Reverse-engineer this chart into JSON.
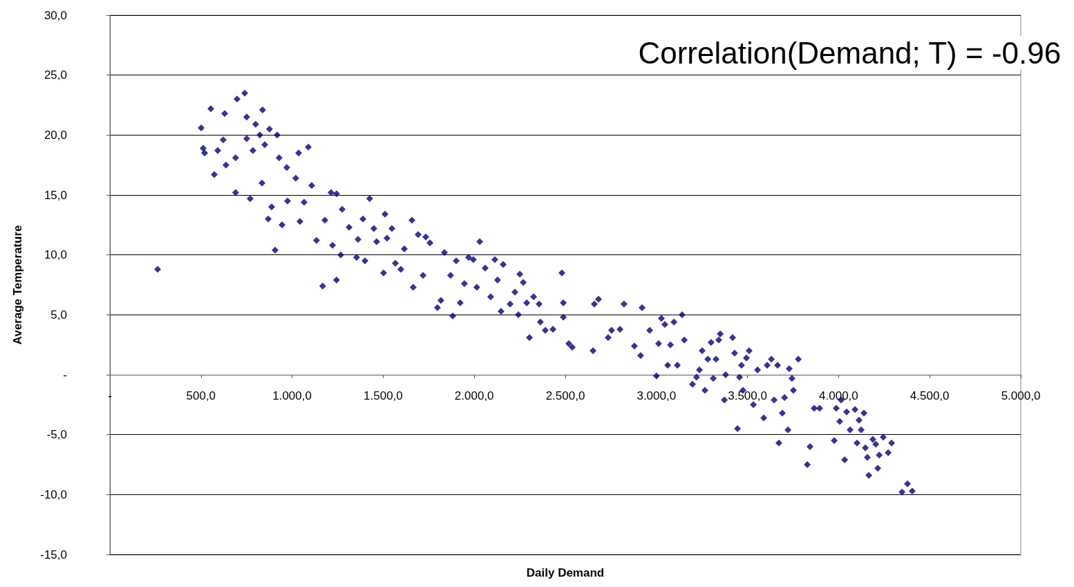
{
  "chart_data": {
    "type": "scatter",
    "xlabel": "Daily Demand",
    "ylabel": "Average Temperature",
    "annotations": [
      "Correlation(Demand; T) = -0.96"
    ],
    "x": [
      262,
      501,
      512,
      554,
      520,
      573,
      592,
      622,
      630,
      637,
      690,
      690,
      698,
      740,
      751,
      751,
      770,
      785,
      800,
      823,
      838,
      835,
      850,
      876,
      869,
      888,
      907,
      918,
      929,
      945,
      971,
      975,
      1020,
      1036,
      1043,
      1066,
      1089,
      1108,
      1134,
      1168,
      1180,
      1214,
      1222,
      1244,
      1244,
      1267,
      1275,
      1313,
      1354,
      1362,
      1389,
      1400,
      1426,
      1449,
      1464,
      1502,
      1510,
      1521,
      1548,
      1567,
      1597,
      1616,
      1658,
      1665,
      1692,
      1719,
      1734,
      1757,
      1798,
      1817,
      1836,
      1870,
      1882,
      1901,
      1923,
      1946,
      1969,
      1995,
      2014,
      2030,
      2060,
      2090,
      2113,
      2128,
      2147,
      2159,
      2197,
      2223,
      2242,
      2250,
      2269,
      2288,
      2303,
      2326,
      2356,
      2363,
      2390,
      2432,
      2481,
      2489,
      2489,
      2519,
      2538,
      2652,
      2659,
      2682,
      2735,
      2754,
      2800,
      2822,
      2879,
      2913,
      2921,
      2963,
      3000,
      3012,
      3027,
      3046,
      3062,
      3077,
      3096,
      3115,
      3141,
      3153,
      3198,
      3220,
      3236,
      3251,
      3266,
      3282,
      3300,
      3312,
      3327,
      3342,
      3350,
      3373,
      3380,
      3418,
      3429,
      3445,
      3456,
      3467,
      3475,
      3494,
      3509,
      3532,
      3555,
      3589,
      3608,
      3631,
      3646,
      3665,
      3672,
      3691,
      3703,
      3722,
      3729,
      3744,
      3752,
      3779,
      3828,
      3843,
      3866,
      3896,
      3976,
      3987,
      4006,
      4014,
      4033,
      4044,
      4063,
      4090,
      4101,
      4112,
      4124,
      4139,
      4147,
      4158,
      4166,
      4188,
      4204,
      4215,
      4223,
      4245,
      4272,
      4291,
      4348,
      4378,
      4404
    ],
    "series": [
      {
        "color": "#000080",
        "values": [
          8.8,
          20.6,
          18.9,
          22.2,
          18.5,
          16.7,
          18.7,
          19.6,
          21.8,
          17.5,
          18.1,
          15.2,
          23.0,
          23.5,
          21.5,
          19.7,
          14.7,
          18.7,
          20.9,
          20.0,
          22.1,
          16.0,
          19.2,
          20.5,
          13.0,
          14.0,
          10.4,
          20.0,
          18.1,
          12.5,
          17.3,
          14.5,
          16.4,
          18.5,
          12.8,
          14.4,
          19.0,
          15.8,
          11.2,
          7.4,
          12.9,
          15.2,
          10.8,
          7.9,
          15.1,
          10.0,
          13.8,
          12.3,
          9.8,
          11.3,
          13.0,
          9.5,
          14.7,
          12.2,
          11.1,
          8.5,
          13.4,
          11.4,
          12.2,
          9.3,
          8.8,
          10.5,
          12.9,
          7.3,
          11.7,
          8.3,
          11.5,
          11.0,
          5.6,
          6.2,
          10.2,
          8.3,
          4.9,
          9.5,
          6.0,
          7.6,
          9.8,
          9.6,
          7.3,
          11.1,
          8.9,
          6.5,
          9.6,
          7.9,
          5.3,
          9.2,
          5.9,
          6.9,
          5.0,
          8.4,
          7.7,
          6.0,
          3.1,
          6.5,
          5.9,
          4.4,
          3.7,
          3.8,
          8.5,
          6.0,
          4.8,
          2.6,
          2.3,
          2.0,
          5.9,
          6.3,
          3.1,
          3.7,
          3.8,
          5.9,
          2.4,
          1.6,
          5.6,
          3.7,
          -0.1,
          2.6,
          4.7,
          4.2,
          0.8,
          2.5,
          4.4,
          0.8,
          5.0,
          2.9,
          -0.8,
          -0.2,
          0.4,
          2.0,
          -1.3,
          1.3,
          2.7,
          -0.3,
          1.3,
          2.9,
          3.4,
          -2.1,
          0.0,
          3.1,
          1.8,
          -4.5,
          -0.2,
          0.8,
          -1.3,
          1.4,
          2.0,
          -2.5,
          0.4,
          -3.6,
          0.8,
          1.3,
          -2.1,
          0.8,
          -5.7,
          -3.2,
          -1.9,
          -4.6,
          0.5,
          -0.3,
          -1.3,
          1.3,
          -7.5,
          -6.0,
          -2.8,
          -2.8,
          -5.5,
          -2.8,
          -3.9,
          -2.1,
          -7.1,
          -3.1,
          -4.6,
          -2.9,
          -5.7,
          -3.8,
          -4.6,
          -3.2,
          -6.1,
          -6.9,
          -8.4,
          -5.4,
          -5.8,
          -7.8,
          -6.7,
          -5.2,
          -6.5,
          -5.7,
          -9.8,
          -9.1,
          -9.7
        ]
      }
    ],
    "xlim": [
      0,
      5000
    ],
    "xticks": [
      {
        "value": 0,
        "label": "-"
      },
      {
        "value": 500,
        "label": "500,0"
      },
      {
        "value": 1000,
        "label": "1.000,0"
      },
      {
        "value": 1500,
        "label": "1.500,0"
      },
      {
        "value": 2000,
        "label": "2.000,0"
      },
      {
        "value": 2500,
        "label": "2.500,0"
      },
      {
        "value": 3000,
        "label": "3.000,0"
      },
      {
        "value": 3500,
        "label": "3.500,0"
      },
      {
        "value": 4000,
        "label": "4.000,0"
      },
      {
        "value": 4500,
        "label": "4.500,0"
      },
      {
        "value": 5000,
        "label": "5.000,0"
      }
    ],
    "ylim": [
      -15,
      30
    ],
    "yticks": [
      {
        "value": -15,
        "label": "-15,0"
      },
      {
        "value": -10,
        "label": "-10,0"
      },
      {
        "value": -5,
        "label": "-5,0"
      },
      {
        "value": 0,
        "label": "-"
      },
      {
        "value": 5,
        "label": "5,0"
      },
      {
        "value": 10,
        "label": "10,0"
      },
      {
        "value": 15,
        "label": "15,0"
      },
      {
        "value": 20,
        "label": "20,0"
      },
      {
        "value": 25,
        "label": "25,0"
      },
      {
        "value": 30,
        "label": "30,0"
      }
    ],
    "grid": "y",
    "marker": "diamond"
  }
}
